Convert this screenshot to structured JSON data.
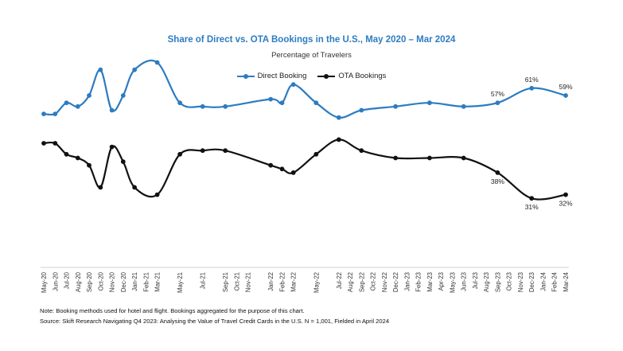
{
  "chart_data": {
    "type": "line",
    "title": "Share of Direct vs. OTA Bookings in the U.S., May 2020 – Mar 2024",
    "subtitle": "Percentage of Travelers",
    "colors": {
      "direct": "#2d7cc1",
      "ota": "#111111"
    },
    "categories": [
      "May-20",
      "Jun-20",
      "Jul-20",
      "Aug-20",
      "Sep-20",
      "Oct-20",
      "Nov-20",
      "Dec-20",
      "Jan-21",
      "Feb-21",
      "Mar-21",
      "May-21",
      "Jul-21",
      "Sep-21",
      "Oct-21",
      "Nov-21",
      "Jan-22",
      "Feb-22",
      "Mar-22",
      "May-22",
      "Jul-22",
      "Aug-22",
      "Sep-22",
      "Oct-22",
      "Nov-22",
      "Dec-22",
      "Jan-23",
      "Feb-23",
      "Mar-23",
      "Apr-23",
      "May-23",
      "Jun-23",
      "Jul-23",
      "Aug-23",
      "Sep-23",
      "Oct-23",
      "Nov-23",
      "Dec-23",
      "Jan-24",
      "Feb-24",
      "Mar-24"
    ],
    "x_positions": [
      0,
      1,
      2,
      3,
      4,
      5,
      6,
      7,
      8,
      9,
      10,
      12,
      14,
      16,
      17,
      18,
      20,
      21,
      22,
      24,
      26,
      27,
      28,
      29,
      30,
      31,
      32,
      33,
      34,
      35,
      36,
      37,
      38,
      39,
      40,
      41,
      42,
      43,
      44,
      45,
      46
    ],
    "series": [
      {
        "name": "Direct Booking",
        "x": [
          0,
          1,
          2,
          3,
          4,
          5,
          6,
          7,
          8,
          10,
          12,
          14,
          16,
          20,
          21,
          22,
          24,
          26,
          28,
          31,
          34,
          37,
          40,
          43,
          46
        ],
        "y": [
          54,
          54,
          57,
          56,
          59,
          66,
          55,
          59,
          66,
          68,
          57,
          56,
          56,
          58,
          57,
          62,
          57,
          53,
          55,
          56,
          57,
          56,
          57,
          61,
          59
        ]
      },
      {
        "name": "OTA Bookings",
        "x": [
          0,
          1,
          2,
          3,
          4,
          5,
          6,
          7,
          8,
          10,
          12,
          14,
          16,
          20,
          21,
          22,
          24,
          26,
          28,
          31,
          34,
          37,
          40,
          43,
          46
        ],
        "y": [
          46,
          46,
          43,
          42,
          40,
          34,
          45,
          41,
          34,
          32,
          43,
          44,
          44,
          40,
          39,
          38,
          43,
          47,
          44,
          42,
          42,
          42,
          38,
          31,
          32
        ]
      }
    ],
    "annotations": [
      {
        "series": "Direct Booking",
        "x": 40,
        "y": 57,
        "text": "57%"
      },
      {
        "series": "Direct Booking",
        "x": 43,
        "y": 61,
        "text": "61%"
      },
      {
        "series": "Direct Booking",
        "x": 46,
        "y": 59,
        "text": "59%"
      },
      {
        "series": "OTA Bookings",
        "x": 40,
        "y": 38,
        "text": "38%"
      },
      {
        "series": "OTA Bookings",
        "x": 43,
        "y": 31,
        "text": "31%"
      },
      {
        "series": "OTA Bookings",
        "x": 46,
        "y": 32,
        "text": "32%"
      }
    ],
    "ylim": [
      20,
      72
    ],
    "grid": false,
    "legend_position": "top-center"
  },
  "notes": {
    "note": "Note: Booking methods used for hotel and flight. Bookings aggregated for the purpose of this chart.",
    "source": "Source: Skift Research Navigating Q4 2023: Analysing the Value of Travel Credit Cards in the U.S. N = 1,001, Fielded in April 2024"
  }
}
